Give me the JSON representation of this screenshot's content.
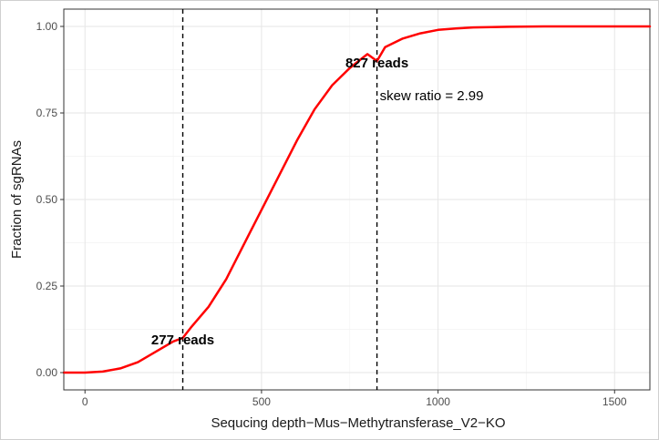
{
  "chart_data": {
    "type": "line",
    "title": "",
    "xlabel": "Sequcing depth−Mus−Methytransferase_V2−KO",
    "ylabel": "Fraction of sgRNAs",
    "xlim": [
      -60,
      1600
    ],
    "ylim": [
      -0.05,
      1.05
    ],
    "x_ticks": [
      0,
      500,
      1000,
      1500
    ],
    "x_tick_labels": [
      "0",
      "500",
      "1000",
      "1500"
    ],
    "y_ticks": [
      0,
      0.25,
      0.5,
      0.75,
      1.0
    ],
    "y_tick_labels": [
      "0.00",
      "0.25",
      "0.50",
      "0.75",
      "1.00"
    ],
    "grid": true,
    "series": [
      {
        "color": "#ff0000",
        "x": [
          -60,
          0,
          50,
          100,
          150,
          200,
          250,
          277,
          300,
          350,
          400,
          450,
          500,
          550,
          600,
          650,
          700,
          750,
          800,
          827,
          850,
          900,
          950,
          1000,
          1050,
          1100,
          1200,
          1300,
          1400,
          1500,
          1600
        ],
        "y": [
          0.0,
          0.0,
          0.003,
          0.012,
          0.03,
          0.06,
          0.09,
          0.1,
          0.13,
          0.19,
          0.27,
          0.37,
          0.47,
          0.57,
          0.67,
          0.76,
          0.83,
          0.88,
          0.92,
          0.9,
          0.94,
          0.965,
          0.98,
          0.99,
          0.994,
          0.997,
          0.999,
          1.0,
          1.0,
          1.0,
          1.0
        ]
      }
    ],
    "vlines": [
      {
        "x": 277,
        "label": "277 reads",
        "label_y": 0.095
      },
      {
        "x": 827,
        "label": "827 reads",
        "label_y": 0.895
      }
    ],
    "annotations": [
      {
        "text": "skew ratio = 2.99",
        "x": 835,
        "y": 0.8
      }
    ]
  }
}
